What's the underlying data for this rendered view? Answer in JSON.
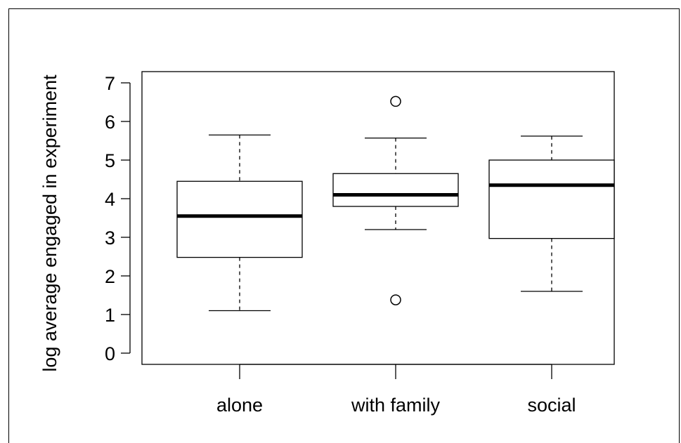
{
  "chart_data": {
    "type": "boxplot",
    "title": "",
    "xlabel": "",
    "ylabel": "log average engaged in experiment",
    "ylim": [
      -0.3,
      7.3
    ],
    "y_ticks": [
      0,
      1,
      2,
      3,
      4,
      5,
      6,
      7
    ],
    "y_tick_labels": [
      "0",
      "1",
      "2",
      "3",
      "4",
      "5",
      "6",
      "7"
    ],
    "categories": [
      "alone",
      "with family",
      "social"
    ],
    "boxes": [
      {
        "category": "alone",
        "whisker_low": 1.1,
        "q1": 2.48,
        "median": 3.55,
        "q3": 4.45,
        "whisker_high": 5.65,
        "outliers": []
      },
      {
        "category": "with family",
        "whisker_low": 3.2,
        "q1": 3.8,
        "median": 4.1,
        "q3": 4.65,
        "whisker_high": 5.57,
        "outliers": [
          6.52,
          1.38
        ]
      },
      {
        "category": "social",
        "whisker_low": 1.6,
        "q1": 2.97,
        "median": 4.35,
        "q3": 5.0,
        "whisker_high": 5.62,
        "outliers": []
      }
    ],
    "grid": false,
    "legend": "none"
  }
}
